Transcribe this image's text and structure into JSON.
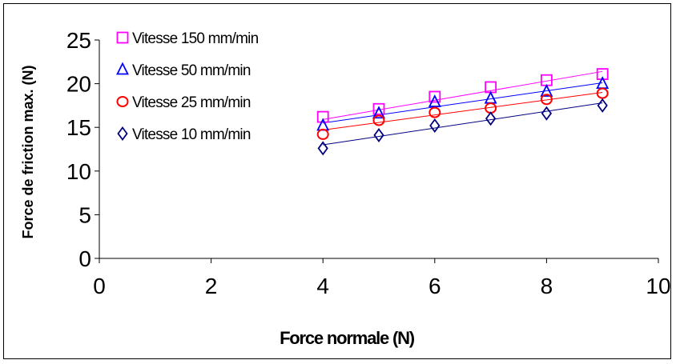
{
  "chart_data": {
    "type": "scatter",
    "title": "",
    "xlabel": "Force normale (N)",
    "ylabel": "Force de  friction max. (N)",
    "xlim": [
      0,
      10
    ],
    "ylim": [
      0,
      25
    ],
    "xticks": [
      0,
      2,
      4,
      6,
      8,
      10
    ],
    "yticks": [
      0,
      5,
      10,
      15,
      20,
      25
    ],
    "grid": false,
    "legend_position": "top-left",
    "trendlines": true,
    "series": [
      {
        "name": "Vitesse 150 mm/min",
        "marker": "square",
        "color": "#ff00ff",
        "x": [
          4,
          5,
          6,
          7,
          8,
          9
        ],
        "y": [
          16.2,
          17.1,
          18.5,
          19.6,
          20.4,
          21.1
        ],
        "trend": [
          15.9,
          21.4
        ]
      },
      {
        "name": "Vitesse 50 mm/min",
        "marker": "triangle",
        "color": "#0000ff",
        "x": [
          4,
          5,
          6,
          7,
          8,
          9
        ],
        "y": [
          15.2,
          16.6,
          17.9,
          18.3,
          19.1,
          20.0
        ],
        "trend": [
          15.5,
          20.1
        ]
      },
      {
        "name": "Vitesse 25 mm/min",
        "marker": "circle",
        "color": "#ff0000",
        "x": [
          4,
          5,
          6,
          7,
          8,
          9
        ],
        "y": [
          14.2,
          15.8,
          16.7,
          17.2,
          18.2,
          18.9
        ],
        "trend": [
          14.7,
          19.0
        ]
      },
      {
        "name": "Vitesse 10 mm/min",
        "marker": "diamond",
        "color": "#000080",
        "x": [
          4,
          5,
          6,
          7,
          8,
          9
        ],
        "y": [
          12.6,
          14.1,
          15.2,
          16.0,
          16.6,
          17.5
        ],
        "trend": [
          13.0,
          17.8
        ]
      }
    ]
  }
}
